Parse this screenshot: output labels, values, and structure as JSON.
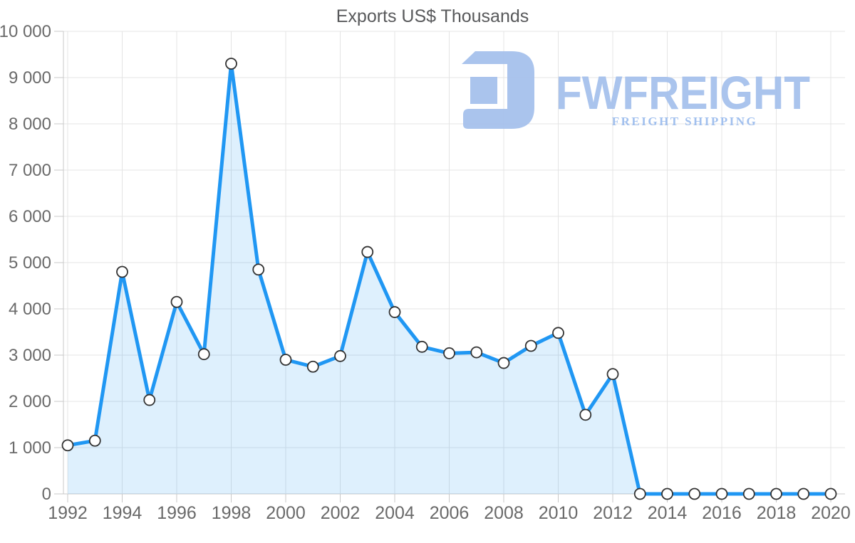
{
  "title": "Exports US$ Thousands",
  "watermark": {
    "brand": "FWFREIGHT",
    "tagline": "FREIGHT SHIPPING",
    "icon": "stylized-f-freight-logo-icon",
    "color": "#a6c1ed",
    "tagline_color": "#9dbdee"
  },
  "colors": {
    "line": "#2097f3",
    "area_fill": "rgba(32,151,243,0.15)",
    "marker_fill": "#ffffff",
    "marker_stroke": "#333333",
    "grid": "#e4e4e4",
    "axis": "#c8c8c8",
    "tick_text": "#6a6a6a",
    "title_text": "#58595b"
  },
  "chart_data": {
    "type": "area",
    "title": "Exports US$ Thousands",
    "xlabel": "",
    "ylabel": "",
    "ylim": [
      0,
      10000
    ],
    "y_tick_step": 1000,
    "grid": true,
    "legend": false,
    "x": [
      1992,
      1993,
      1994,
      1995,
      1996,
      1997,
      1998,
      1999,
      2000,
      2001,
      2002,
      2003,
      2004,
      2005,
      2006,
      2007,
      2008,
      2009,
      2010,
      2011,
      2012,
      2013,
      2014,
      2015,
      2016,
      2017,
      2018,
      2019,
      2020
    ],
    "values": [
      1050,
      1150,
      4800,
      2030,
      4150,
      3020,
      9300,
      4850,
      2900,
      2750,
      2980,
      5230,
      3930,
      3180,
      3040,
      3060,
      2830,
      3200,
      3480,
      1710,
      2590,
      0,
      0,
      0,
      0,
      0,
      0,
      0,
      0
    ],
    "y_tick_labels": [
      "0",
      "1 000",
      "2 000",
      "3 000",
      "4 000",
      "5 000",
      "6 000",
      "7 000",
      "8 000",
      "9 000",
      "10 000"
    ],
    "x_tick_labels": [
      "1992",
      "1994",
      "1996",
      "1998",
      "2000",
      "2002",
      "2004",
      "2006",
      "2008",
      "2010",
      "2012",
      "2014",
      "2016",
      "2018",
      "2020"
    ]
  }
}
